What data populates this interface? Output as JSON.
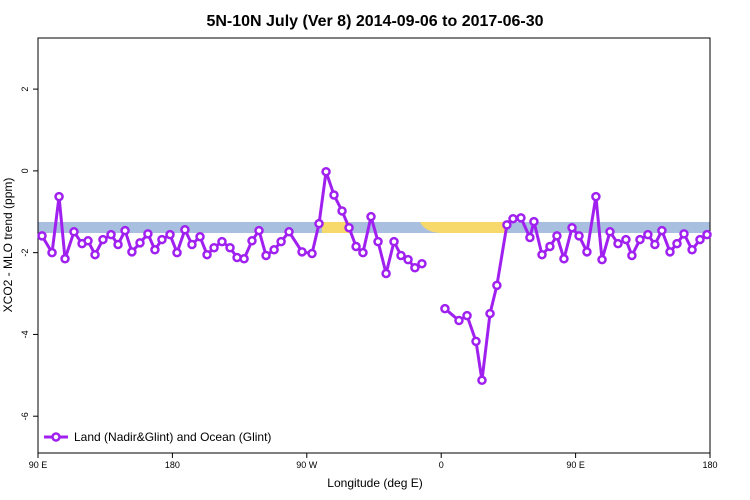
{
  "chart_data": {
    "type": "line",
    "title": "5N-10N July (Ver 8)   2014-09-06 to 2017-06-30",
    "xlabel": "Longitude (deg E)",
    "ylabel": "XCO2 - MLO trend (ppm)",
    "xlim": [
      90,
      540
    ],
    "ylim": [
      -6.9,
      3.25
    ],
    "xticks": [
      {
        "value": 90,
        "label": "90 E"
      },
      180,
      {
        "value": 270,
        "label": "90 W"
      },
      {
        "value": 360,
        "label": "0"
      },
      {
        "value": 450,
        "label": "90 E"
      },
      {
        "value": 540,
        "label": "180"
      }
    ],
    "yticks": [
      -6,
      -4,
      -2,
      0,
      2
    ],
    "legend": "bottomleft",
    "x": [
      92.7,
      99.4,
      104.1,
      108.1,
      114.1,
      119.5,
      123.5,
      128.2,
      133.5,
      138.9,
      143.6,
      148.3,
      152.9,
      158.3,
      163.6,
      168.3,
      173.0,
      178.4,
      183.1,
      188.4,
      193.1,
      198.5,
      203.2,
      207.9,
      213.2,
      218.6,
      223.3,
      228.0,
      233.3,
      238.0,
      242.7,
      248.1,
      252.8,
      258.1,
      266.8,
      273.5,
      278.2,
      282.9,
      288.2,
      293.6,
      298.3,
      303.0,
      307.6,
      313.0,
      317.7,
      323.1,
      328.4,
      333.1,
      337.8,
      342.4,
      347.1,
      355.0,
      362.5,
      371.9,
      377.3,
      383.3,
      387.3,
      392.7,
      397.3,
      404.0,
      408.1,
      413.4,
      419.4,
      422.1,
      427.5,
      432.8,
      437.5,
      442.2,
      447.6,
      452.3,
      457.6,
      463.6,
      467.7,
      473.0,
      478.4,
      483.7,
      487.7,
      493.1,
      498.4,
      503.1,
      507.8,
      513.2,
      517.9,
      522.6,
      528.0,
      533.3,
      538.0
    ],
    "series": [
      {
        "name": "Land (Nadir&Glint) and Ocean (Glint)",
        "color": "#a020f0",
        "values": [
          -1.59,
          -2.0,
          -0.63,
          -2.15,
          -1.49,
          -1.78,
          -1.71,
          -2.05,
          -1.68,
          -1.56,
          -1.8,
          -1.46,
          -1.98,
          -1.76,
          -1.54,
          -1.93,
          -1.68,
          -1.56,
          -2.0,
          -1.44,
          -1.8,
          -1.61,
          -2.05,
          -1.88,
          -1.73,
          -1.88,
          -2.12,
          -2.15,
          -1.71,
          -1.46,
          -2.07,
          -1.93,
          -1.73,
          -1.49,
          -1.98,
          -2.02,
          -1.29,
          -0.02,
          -0.59,
          -0.98,
          -1.39,
          -1.85,
          -2.0,
          -1.12,
          -1.73,
          -2.51,
          -1.73,
          -2.07,
          -2.17,
          -2.37,
          -2.27,
          null,
          -3.37,
          -3.66,
          -3.54,
          -4.17,
          -5.12,
          -3.49,
          -2.8,
          -1.32,
          -1.17,
          -1.15,
          -1.63,
          -1.24,
          -2.05,
          -1.85,
          -1.59,
          -2.15,
          -1.39,
          -1.59,
          -1.98,
          -0.63,
          -2.17,
          -1.49,
          -1.78,
          -1.68,
          -2.07,
          -1.68,
          -1.56,
          -1.8,
          -1.46,
          -1.98,
          -1.78,
          -1.54,
          -1.93,
          -1.68,
          -1.56
        ]
      }
    ]
  }
}
